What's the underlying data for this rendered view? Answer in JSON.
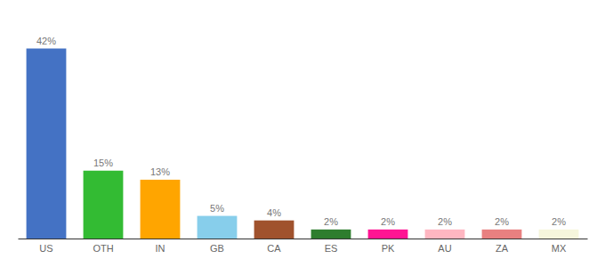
{
  "chart_data": {
    "type": "bar",
    "categories": [
      "US",
      "OTH",
      "IN",
      "GB",
      "CA",
      "ES",
      "PK",
      "AU",
      "ZA",
      "MX"
    ],
    "values": [
      42,
      15,
      13,
      5,
      4,
      2,
      2,
      2,
      2,
      2
    ],
    "value_labels": [
      "42%",
      "15%",
      "13%",
      "5%",
      "4%",
      "2%",
      "2%",
      "2%",
      "2%",
      "2%"
    ],
    "colors": [
      "#4472C4",
      "#33BB33",
      "#FFA500",
      "#87CEEB",
      "#A0522D",
      "#2E7D2E",
      "#FF1493",
      "#FFB6C1",
      "#E88080",
      "#F5F5DC"
    ],
    "ylim": [
      0,
      48
    ],
    "data_labels": true,
    "tick_labels": "x"
  }
}
